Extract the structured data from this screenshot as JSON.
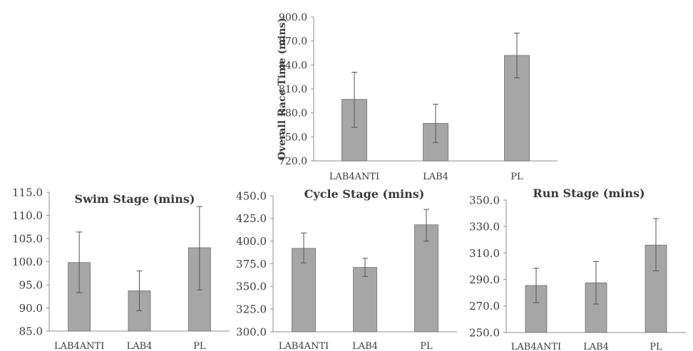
{
  "chart_data": [
    {
      "type": "bar",
      "title": "",
      "ylabel": "Overall Race Time (mins)",
      "categories": [
        "LAB4ANTI",
        "LAB4",
        "PL"
      ],
      "values": [
        797,
        767,
        852
      ],
      "error": [
        [
          762,
          831
        ],
        [
          743,
          791
        ],
        [
          824,
          880
        ]
      ],
      "ylim": [
        720,
        900
      ],
      "yticks": [
        "720.0",
        "750.0",
        "780.0",
        "810.0",
        "840.0",
        "870.0",
        "900.0"
      ],
      "grid": false,
      "bar_color": "#a6a6a6"
    },
    {
      "type": "bar",
      "title": "Swim Stage (mins)",
      "ylabel": "",
      "categories": [
        "LAB4ANTI",
        "LAB4",
        "PL"
      ],
      "values": [
        99.8,
        93.7,
        103.0
      ],
      "error": [
        [
          93.3,
          106.4
        ],
        [
          89.4,
          98.0
        ],
        [
          93.9,
          111.9
        ]
      ],
      "ylim": [
        85,
        115
      ],
      "yticks": [
        "85.0",
        "90.0",
        "95.0",
        "100.0",
        "105.0",
        "110.0",
        "115.0"
      ],
      "grid": false,
      "bar_color": "#a6a6a6"
    },
    {
      "type": "bar",
      "title": "Cycle Stage (mins)",
      "ylabel": "",
      "categories": [
        "LAB4ANTI",
        "LAB4",
        "PL"
      ],
      "values": [
        392,
        371,
        418
      ],
      "error": [
        [
          376,
          409
        ],
        [
          361,
          381
        ],
        [
          400,
          435
        ]
      ],
      "ylim": [
        300,
        450
      ],
      "yticks": [
        "300.0",
        "325.0",
        "350.0",
        "375.0",
        "400.0",
        "425.0",
        "450.0"
      ],
      "grid": false,
      "bar_color": "#a6a6a6"
    },
    {
      "type": "bar",
      "title": "Run Stage (mins)",
      "ylabel": "",
      "categories": [
        "LAB4ANTI",
        "LAB4",
        "PL"
      ],
      "values": [
        285.5,
        287.5,
        316.0
      ],
      "error": [
        [
          272.5,
          298.5
        ],
        [
          271.5,
          303.5
        ],
        [
          296.5,
          336.0
        ]
      ],
      "ylim": [
        250,
        350
      ],
      "yticks": [
        "250.0",
        "270.0",
        "290.0",
        "310.0",
        "330.0",
        "350.0"
      ],
      "grid": false,
      "bar_color": "#a6a6a6"
    }
  ]
}
